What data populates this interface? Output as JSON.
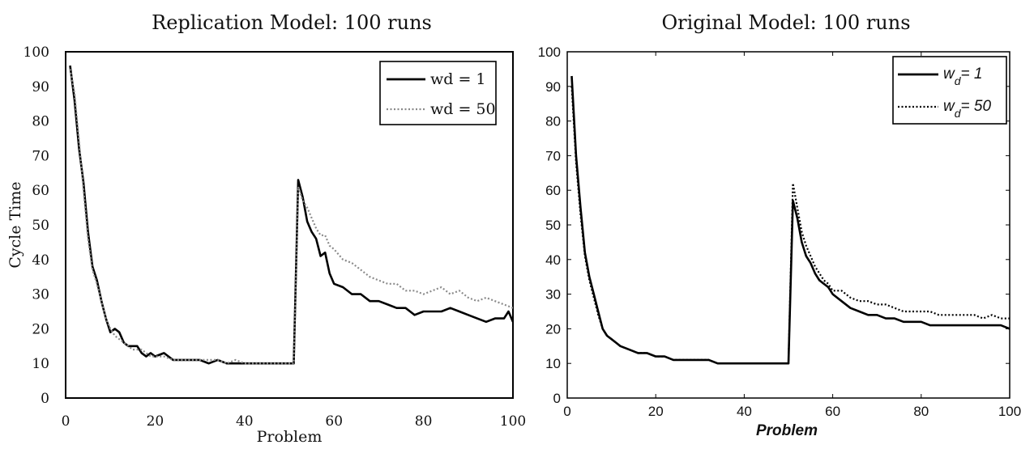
{
  "chart_data": [
    {
      "type": "line",
      "title": "Replication Model: 100 runs",
      "xlabel": "Problem",
      "ylabel": "Cycle Time",
      "xlim": [
        0,
        100
      ],
      "ylim": [
        0,
        100
      ],
      "x_ticks": [
        "0",
        "20",
        "40",
        "60",
        "80",
        "100"
      ],
      "y_ticks": [
        "0",
        "10",
        "20",
        "30",
        "40",
        "50",
        "60",
        "70",
        "80",
        "90",
        "100"
      ],
      "legend": "top-right",
      "grid": false,
      "series": [
        {
          "name": "wd = 1",
          "color": "#000000",
          "style": "solid",
          "x": [
            1,
            2,
            3,
            4,
            5,
            6,
            7,
            8,
            9,
            10,
            11,
            12,
            13,
            14,
            15,
            16,
            17,
            18,
            19,
            20,
            22,
            24,
            26,
            28,
            30,
            32,
            34,
            36,
            38,
            40,
            42,
            44,
            46,
            48,
            50,
            51,
            52,
            53,
            54,
            55,
            56,
            57,
            58,
            59,
            60,
            62,
            64,
            66,
            68,
            70,
            72,
            74,
            76,
            78,
            80,
            82,
            84,
            86,
            88,
            90,
            92,
            94,
            96,
            98,
            99,
            100
          ],
          "y": [
            96,
            86,
            72,
            62,
            48,
            38,
            34,
            28,
            23,
            19,
            20,
            19,
            16,
            15,
            15,
            15,
            13,
            12,
            13,
            12,
            13,
            11,
            11,
            11,
            11,
            10,
            11,
            10,
            10,
            10,
            10,
            10,
            10,
            10,
            10,
            10,
            63,
            58,
            51,
            48,
            46,
            41,
            42,
            36,
            33,
            32,
            30,
            30,
            28,
            28,
            27,
            26,
            26,
            24,
            25,
            25,
            25,
            26,
            25,
            24,
            23,
            22,
            23,
            23,
            25,
            22
          ]
        },
        {
          "name": "wd = 50",
          "color": "#8a8a8a",
          "style": "dotted",
          "x": [
            1,
            2,
            3,
            4,
            5,
            6,
            7,
            8,
            9,
            10,
            11,
            12,
            13,
            14,
            15,
            16,
            17,
            18,
            19,
            20,
            22,
            24,
            26,
            28,
            30,
            32,
            34,
            36,
            38,
            40,
            42,
            44,
            46,
            48,
            50,
            51,
            52,
            53,
            54,
            55,
            56,
            57,
            58,
            59,
            60,
            62,
            64,
            66,
            68,
            70,
            72,
            74,
            76,
            78,
            80,
            82,
            84,
            86,
            88,
            90,
            92,
            94,
            96,
            98,
            100
          ],
          "y": [
            95,
            88,
            74,
            60,
            46,
            37,
            33,
            28,
            23,
            20,
            18,
            17,
            16,
            15,
            14,
            14,
            14,
            13,
            12,
            12,
            12,
            11,
            11,
            11,
            11,
            11,
            11,
            10,
            11,
            10,
            10,
            10,
            10,
            10,
            10,
            10,
            61,
            57,
            55,
            52,
            49,
            47,
            47,
            44,
            43,
            40,
            39,
            37,
            35,
            34,
            33,
            33,
            31,
            31,
            30,
            31,
            32,
            30,
            31,
            29,
            28,
            29,
            28,
            27,
            26
          ]
        }
      ]
    },
    {
      "type": "line",
      "title": "Original Model: 100 runs",
      "xlabel": "Problem",
      "ylabel": "",
      "xlim": [
        0,
        100
      ],
      "ylim": [
        0,
        100
      ],
      "x_ticks": [
        "0",
        "20",
        "40",
        "60",
        "80",
        "100"
      ],
      "y_ticks": [
        "0",
        "10",
        "20",
        "30",
        "40",
        "50",
        "60",
        "70",
        "80",
        "90",
        "100"
      ],
      "legend": "top-right",
      "grid": false,
      "series": [
        {
          "name": "wd= 1",
          "color": "#000000",
          "style": "solid",
          "x": [
            1,
            2,
            3,
            4,
            5,
            6,
            7,
            8,
            9,
            10,
            11,
            12,
            14,
            16,
            18,
            20,
            22,
            24,
            26,
            28,
            30,
            32,
            34,
            36,
            38,
            40,
            42,
            44,
            46,
            48,
            50,
            51,
            52,
            53,
            54,
            55,
            56,
            57,
            58,
            59,
            60,
            62,
            64,
            66,
            68,
            70,
            72,
            74,
            76,
            78,
            80,
            82,
            84,
            86,
            88,
            90,
            92,
            94,
            96,
            98,
            100
          ],
          "y": [
            93,
            70,
            55,
            42,
            35,
            30,
            25,
            20,
            18,
            17,
            16,
            15,
            14,
            13,
            13,
            12,
            12,
            11,
            11,
            11,
            11,
            11,
            10,
            10,
            10,
            10,
            10,
            10,
            10,
            10,
            10,
            57,
            52,
            45,
            41,
            39,
            36,
            34,
            33,
            32,
            30,
            28,
            26,
            25,
            24,
            24,
            23,
            23,
            22,
            22,
            22,
            21,
            21,
            21,
            21,
            21,
            21,
            21,
            21,
            21,
            20
          ]
        },
        {
          "name": "wd= 50",
          "color": "#000000",
          "style": "dotted",
          "x": [
            1,
            2,
            3,
            4,
            5,
            6,
            7,
            8,
            9,
            10,
            11,
            12,
            14,
            16,
            18,
            20,
            22,
            24,
            26,
            28,
            30,
            32,
            34,
            36,
            38,
            40,
            42,
            44,
            46,
            48,
            50,
            51,
            52,
            53,
            54,
            55,
            56,
            57,
            58,
            59,
            60,
            62,
            64,
            66,
            68,
            70,
            72,
            74,
            76,
            78,
            80,
            82,
            84,
            86,
            88,
            90,
            92,
            94,
            96,
            98,
            100
          ],
          "y": [
            90,
            68,
            53,
            41,
            34,
            29,
            24,
            20,
            18,
            17,
            16,
            15,
            14,
            13,
            13,
            12,
            12,
            11,
            11,
            11,
            11,
            11,
            10,
            10,
            10,
            10,
            10,
            10,
            10,
            10,
            10,
            62,
            55,
            48,
            44,
            41,
            38,
            36,
            34,
            33,
            31,
            31,
            29,
            28,
            28,
            27,
            27,
            26,
            25,
            25,
            25,
            25,
            24,
            24,
            24,
            24,
            24,
            23,
            24,
            23,
            23
          ]
        }
      ]
    }
  ]
}
